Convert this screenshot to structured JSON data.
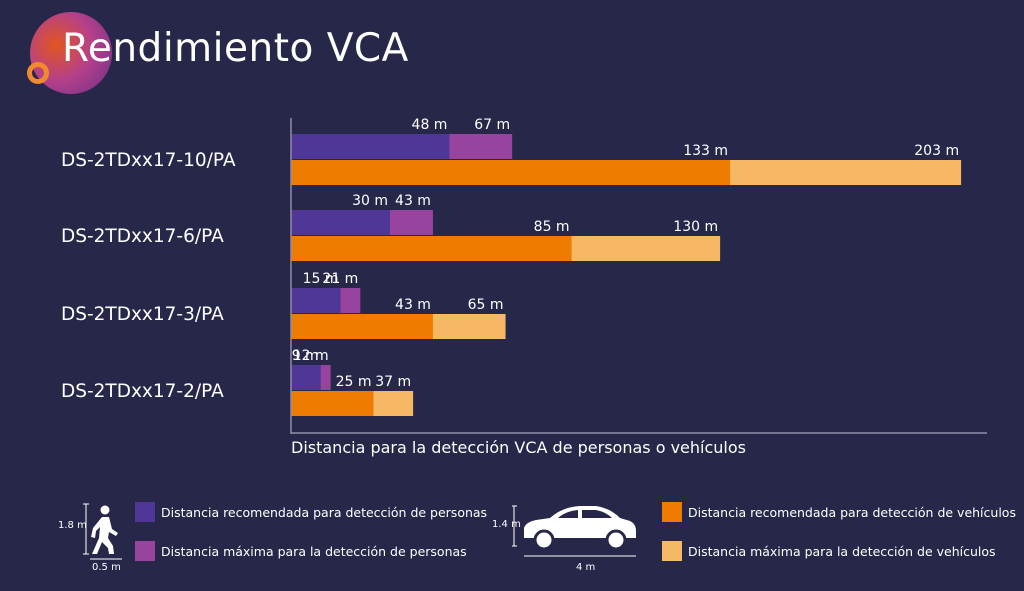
{
  "title": "Rendimiento VCA",
  "chart_data": {
    "type": "bar",
    "orientation": "horizontal",
    "categories": [
      "DS-2TDxx17-10/PA",
      "DS-2TDxx17-6/PA",
      "DS-2TDxx17-3/PA",
      "DS-2TDxx17-2/PA"
    ],
    "xlabel": "Distancia para la detección VCA de personas o vehículos",
    "unit": "m",
    "xlim": [
      0,
      216
    ],
    "grid": false,
    "legend_position": "bottom",
    "series": [
      {
        "name": "Distancia recomendada para detección de personas",
        "color": "#4e3797",
        "values": [
          48,
          30,
          15,
          9
        ]
      },
      {
        "name": "Distancia máxima para la detección de personas",
        "color": "#98449f",
        "values": [
          67,
          43,
          21,
          12
        ]
      },
      {
        "name": "Distancia recomendada para detección de vehículos",
        "color": "#ef7c00",
        "values": [
          133,
          85,
          43,
          25
        ]
      },
      {
        "name": "Distancia máxima para la detección de vehículos",
        "color": "#f7b865",
        "values": [
          203,
          130,
          65,
          37
        ]
      }
    ]
  },
  "legend_icons": {
    "person": {
      "icon": "walking-person-icon",
      "height_label": "1.8 m",
      "width_label": "0.5 m"
    },
    "car": {
      "icon": "car-icon",
      "height_label": "1.4 m",
      "width_label": "4 m"
    }
  }
}
